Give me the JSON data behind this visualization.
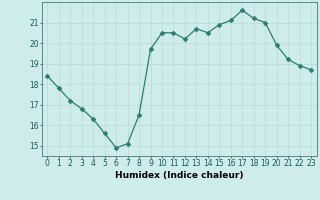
{
  "x": [
    0,
    1,
    2,
    3,
    4,
    5,
    6,
    7,
    8,
    9,
    10,
    11,
    12,
    13,
    14,
    15,
    16,
    17,
    18,
    19,
    20,
    21,
    22,
    23
  ],
  "y": [
    18.4,
    17.8,
    17.2,
    16.8,
    16.3,
    15.6,
    14.9,
    15.1,
    16.5,
    19.7,
    20.5,
    20.5,
    20.2,
    20.7,
    20.5,
    20.9,
    21.1,
    21.6,
    21.2,
    21.0,
    19.9,
    19.2,
    18.9,
    18.7
  ],
  "line_color": "#2d7d6e",
  "marker": "D",
  "marker_size": 2.5,
  "bg_color": "#ceecea",
  "grid_color": "#b8dbd8",
  "xlabel": "Humidex (Indice chaleur)",
  "ylim": [
    14.5,
    22.0
  ],
  "xlim": [
    -0.5,
    23.5
  ],
  "yticks": [
    15,
    16,
    17,
    18,
    19,
    20,
    21
  ],
  "xticks": [
    0,
    1,
    2,
    3,
    4,
    5,
    6,
    7,
    8,
    9,
    10,
    11,
    12,
    13,
    14,
    15,
    16,
    17,
    18,
    19,
    20,
    21,
    22,
    23
  ],
  "tick_fontsize": 5.5,
  "xlabel_fontsize": 6.5,
  "spine_color": "#4a7a75"
}
